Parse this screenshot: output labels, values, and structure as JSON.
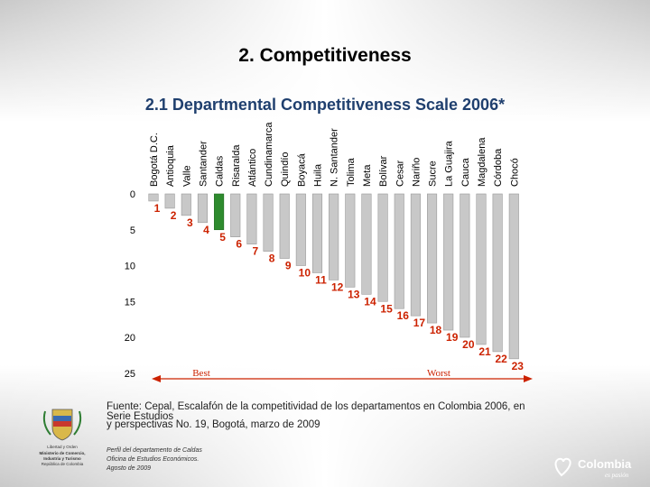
{
  "slide": {
    "title": "2. Competitiveness",
    "subtitle": "2.1 Departmental Competitiveness Scale 2006*"
  },
  "chart_data": {
    "type": "bar",
    "title": "2.1 Departmental Competitiveness Scale 2006*",
    "categories": [
      "Bogotá D.C.",
      "Antioquia",
      "Valle",
      "Santander",
      "Caldas",
      "Risaralda",
      "Atlántico",
      "Cundinamarca",
      "Quindío",
      "Boyacá",
      "Huila",
      "N. Santander",
      "Tolima",
      "Meta",
      "Bolívar",
      "Cesar",
      "Nariño",
      "Sucre",
      "La Guajira",
      "Cauca",
      "Magdalena",
      "Córdoba",
      "Chocó"
    ],
    "values": [
      1,
      2,
      3,
      4,
      5,
      6,
      7,
      8,
      9,
      10,
      11,
      12,
      13,
      14,
      15,
      16,
      17,
      18,
      19,
      20,
      21,
      22,
      23
    ],
    "labels": [
      "1",
      "2",
      "3",
      "4",
      "5",
      "6",
      "7",
      "8",
      "9",
      "10",
      "11",
      "12",
      "13",
      "14",
      "15",
      "16",
      "17",
      "18",
      "19",
      "20",
      "21",
      "22",
      "23"
    ],
    "highlight": "Caldas",
    "y_ticks": [
      0,
      5,
      10,
      15,
      20,
      25
    ],
    "ylim": [
      0,
      25
    ],
    "y_inverted": true,
    "annotations": {
      "best": "Best",
      "worst": "Worst"
    },
    "colors": {
      "bar": "#c8c8c8",
      "highlight": "#2e8b2e",
      "label": "#cc2200",
      "arrow": "#cc2200"
    }
  },
  "source": {
    "line1": "Fuente: Cepal, Escalafón de la competitividad de los departamentos en Colombia 2006, en",
    "line1b": "Serie Estudios",
    "line2": "y perspectivas No. 19, Bogotá, marzo de 2009"
  },
  "footer": {
    "note1": "Perfil del departamento de Caldas",
    "note2": "Oficina de Estudios Económicos.",
    "note3": "Agosto de 2009",
    "ministry1": "Libertad y Orden",
    "ministry2": "Ministerio de Comercio,",
    "ministry3": "Industria y Turismo",
    "ministry4": "República de Colombia",
    "brand": "Colombia",
    "brand_tag": "es pasión"
  }
}
